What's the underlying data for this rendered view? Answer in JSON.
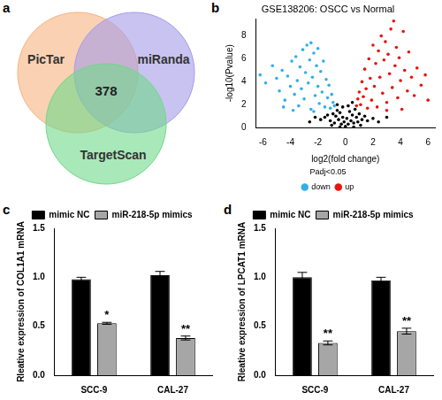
{
  "chart_data": [
    {
      "panel": "a",
      "type": "venn",
      "sets": [
        {
          "name": "PicTar",
          "color": "#f6b37f"
        },
        {
          "name": "miRanda",
          "color": "#a59be8"
        },
        {
          "name": "TargetScan",
          "color": "#6fd88a"
        }
      ],
      "intersection": 378
    },
    {
      "panel": "b",
      "type": "scatter",
      "title": "GSE138206: OSCC vs Normal",
      "x_label": "log2(fold change)",
      "y_label": "-log10(Pvalue)",
      "xlim": [
        -6.5,
        6.5
      ],
      "xticks": [
        -6,
        -4,
        -2,
        0,
        2,
        4,
        6
      ],
      "ylim": [
        0,
        9.5
      ],
      "yticks": [
        0,
        2,
        4,
        6,
        8
      ],
      "grid": false,
      "legend": "bottom",
      "legend_title": "Padj<0.05",
      "marker": "circle",
      "series": [
        {
          "name": "down",
          "color": "#33aee8",
          "x": [
            -6.2,
            -5.8,
            -5.3,
            -5.0,
            -4.8,
            -4.6,
            -4.4,
            -4.2,
            -4.0,
            -3.9,
            -3.7,
            -3.6,
            -3.5,
            -3.4,
            -3.3,
            -3.2,
            -3.1,
            -3.0,
            -2.9,
            -2.8,
            -2.7,
            -2.6,
            -2.5,
            -2.5,
            -2.4,
            -2.3,
            -2.2,
            -2.1,
            -2.0,
            -2.0,
            -1.9,
            -1.8,
            -1.7,
            -1.6,
            -1.5,
            -1.4,
            -1.3,
            -1.2,
            -1.1,
            -1.0,
            -0.9,
            -0.8,
            -3.8,
            -4.5,
            -2.3
          ],
          "values": [
            4.6,
            3.9,
            5.4,
            4.3,
            3.2,
            5.0,
            2.4,
            4.5,
            3.6,
            5.8,
            2.9,
            6.2,
            4.1,
            1.9,
            5.3,
            3.4,
            6.8,
            2.5,
            4.8,
            7.2,
            3.9,
            5.9,
            1.6,
            7.4,
            4.4,
            6.5,
            2.8,
            5.4,
            3.6,
            6.9,
            2.1,
            4.9,
            3.1,
            5.8,
            1.8,
            4.2,
            2.6,
            3.7,
            1.7,
            2.9,
            2.2,
            1.9,
            1.5,
            1.8,
            1.4
          ]
        },
        {
          "name": "up",
          "color": "#e8140f",
          "x": [
            0.8,
            0.9,
            1.0,
            1.1,
            1.2,
            1.3,
            1.4,
            1.5,
            1.6,
            1.7,
            1.8,
            1.9,
            2.0,
            2.1,
            2.2,
            2.3,
            2.4,
            2.5,
            2.6,
            2.7,
            2.8,
            2.9,
            3.0,
            3.1,
            3.2,
            3.3,
            3.4,
            3.5,
            3.6,
            3.7,
            3.8,
            3.9,
            4.0,
            4.2,
            4.3,
            4.5,
            4.6,
            4.8,
            5.0,
            5.2,
            5.5,
            5.8,
            6.0,
            3.0,
            4.1
          ],
          "values": [
            1.9,
            2.5,
            3.1,
            2.0,
            4.0,
            2.7,
            5.1,
            3.4,
            1.7,
            6.0,
            4.3,
            2.4,
            7.2,
            3.6,
            5.6,
            1.8,
            6.7,
            4.4,
            8.0,
            3.0,
            5.9,
            7.5,
            2.2,
            6.4,
            4.7,
            8.6,
            3.5,
            9.3,
            5.4,
            7.0,
            2.6,
            6.1,
            4.1,
            8.4,
            5.0,
            3.2,
            6.6,
            4.4,
            2.8,
            5.2,
            3.7,
            4.6,
            2.4,
            1.5,
            1.6
          ]
        },
        {
          "color": "#000000",
          "x": [
            -1.5,
            -1.3,
            -1.1,
            -0.9,
            -0.8,
            -0.7,
            -0.6,
            -0.5,
            -0.4,
            -0.3,
            -0.2,
            -0.1,
            0,
            0.1,
            0.2,
            0.3,
            0.4,
            0.5,
            0.6,
            0.7,
            0.8,
            0.9,
            1.0,
            1.2,
            1.4,
            1.6,
            -1.8,
            -2.2,
            -2.6,
            2.0,
            2.4,
            -0.6,
            0.5,
            -0.2,
            0.2,
            -1.0,
            1.1,
            -0.4,
            0.6,
            3.0
          ],
          "values": [
            0.9,
            1.1,
            0.6,
            1.2,
            0.4,
            1.0,
            1.5,
            0.7,
            1.3,
            0.3,
            0.9,
            0.5,
            0.1,
            0.8,
            0.3,
            1.4,
            0.6,
            1.1,
            0.4,
            1.6,
            0.9,
            0.5,
            1.2,
            0.7,
            1.0,
            0.6,
            0.7,
            0.9,
            0.5,
            0.8,
            0.5,
            2.0,
            2.2,
            1.8,
            1.9,
            0.2,
            0.2,
            0.05,
            0.05,
            0.9
          ]
        }
      ]
    },
    {
      "panel": "c",
      "type": "bar",
      "categories": [
        "SCC-9",
        "CAL-27"
      ],
      "series": [
        {
          "name": "mimic NC",
          "color": "#000000",
          "values": [
            0.98,
            1.02
          ],
          "errors": [
            0.02,
            0.04
          ]
        },
        {
          "name": "miR-218-5p mimics",
          "color": "#a6a6a6",
          "values": [
            0.53,
            0.38
          ],
          "errors": [
            0.01,
            0.02
          ]
        }
      ],
      "y_label": "Rleative expression of COL1A1 mRNA",
      "ylim": [
        0,
        1.5
      ],
      "yticks": [
        {
          "value": 0,
          "label": "0.0"
        },
        0.5,
        {
          "value": 1,
          "label": "1.0"
        },
        1.5
      ],
      "grid": false,
      "legend": "top",
      "annotations": [
        {
          "category": "SCC-9",
          "series": "miR-218-5p mimics",
          "text": "*"
        },
        {
          "category": "CAL-27",
          "series": "miR-218-5p mimics",
          "text": "**"
        }
      ]
    },
    {
      "panel": "d",
      "type": "bar",
      "categories": [
        "SCC-9",
        "CAL-27"
      ],
      "series": [
        {
          "name": "mimic NC",
          "color": "#000000",
          "values": [
            1.0,
            0.97
          ],
          "errors": [
            0.05,
            0.03
          ]
        },
        {
          "name": "miR-218-5p mimics",
          "color": "#a6a6a6",
          "values": [
            0.33,
            0.45
          ],
          "errors": [
            0.02,
            0.03
          ]
        }
      ],
      "y_label": "Rleative expression of LPCAT1 mRNA",
      "ylim": [
        0,
        1.5
      ],
      "yticks": [
        {
          "value": 0,
          "label": "0.0"
        },
        0.5,
        {
          "value": 1,
          "label": "1.0"
        },
        1.5
      ],
      "grid": false,
      "legend": "top",
      "annotations": [
        {
          "category": "SCC-9",
          "series": "miR-218-5p mimics",
          "text": "**"
        },
        {
          "category": "CAL-27",
          "series": "miR-218-5p mimics",
          "text": "**"
        }
      ]
    }
  ]
}
